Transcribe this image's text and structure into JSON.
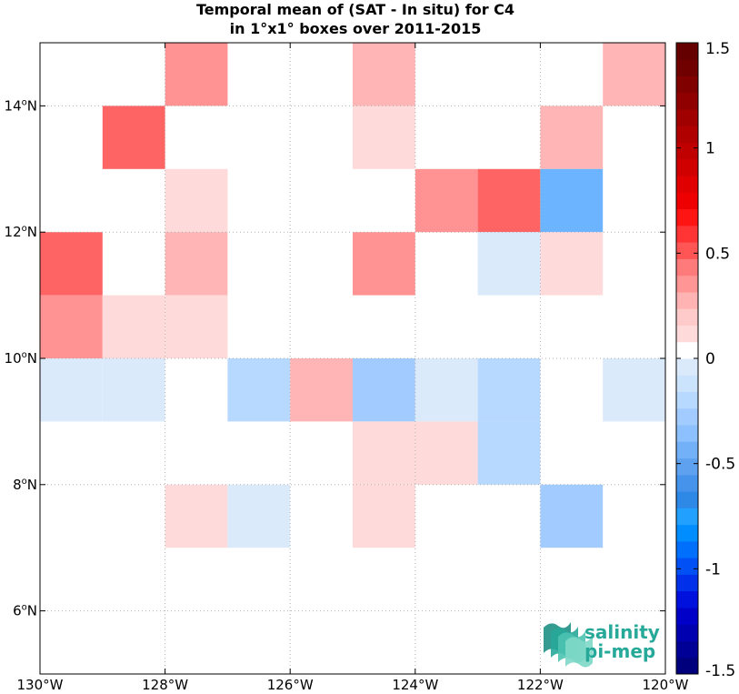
{
  "chart_data": {
    "type": "heatmap",
    "title": "Temporal mean of (SAT - In situ) for C4",
    "subtitle": "in 1°x1° boxes over 2011-2015",
    "xlim": [
      -130,
      -120
    ],
    "ylim": [
      5,
      15
    ],
    "x_ticks": [
      {
        "value": -130,
        "label": "130°W"
      },
      {
        "value": -128,
        "label": "128°W"
      },
      {
        "value": -126,
        "label": "126°W"
      },
      {
        "value": -124,
        "label": "124°W"
      },
      {
        "value": -122,
        "label": "122°W"
      },
      {
        "value": -120,
        "label": "120°W"
      }
    ],
    "y_ticks": [
      {
        "value": 6,
        "deg": "6",
        "hemi": "N"
      },
      {
        "value": 8,
        "deg": "8",
        "hemi": "N"
      },
      {
        "value": 10,
        "deg": "10",
        "hemi": "N"
      },
      {
        "value": 12,
        "deg": "12",
        "hemi": "N"
      },
      {
        "value": 14,
        "deg": "14",
        "hemi": "N"
      }
    ],
    "grid": true,
    "colorbar": {
      "min": -1.5,
      "max": 1.5,
      "levels": 30,
      "ticks": [
        {
          "value": 1.5,
          "label": "1.5"
        },
        {
          "value": 1,
          "label": "1"
        },
        {
          "value": 0.5,
          "label": "0.5"
        },
        {
          "value": 0,
          "label": "0"
        },
        {
          "value": -0.5,
          "label": "-0.5"
        },
        {
          "value": -1,
          "label": "-1"
        },
        {
          "value": -1.5,
          "label": "-1.5"
        }
      ],
      "colors": [
        "#00007c",
        "#000097",
        "#0000b0",
        "#0000c9",
        "#0011dd",
        "#0030ea",
        "#0050f5",
        "#006ffc",
        "#008dff",
        "#22a0ff",
        "#2e88e6",
        "#4593ea",
        "#5ea2ef",
        "#72b0f7",
        "#8cc0ff",
        "#a2ccff",
        "#b7d8ff",
        "#cbe3fd",
        "#dbeafb",
        "#ffffff",
        "#ffdada",
        "#ffcaca",
        "#ffb3b3",
        "#ff9595",
        "#ff7a7a",
        "#ff5555",
        "#ff3535",
        "#ff1414",
        "#ef0000",
        "#e00000",
        "#d00000",
        "#c00000",
        "#b00000",
        "#a00000",
        "#900000",
        "#800000",
        "#700000",
        "#650000"
      ],
      "colors_note": ""
    },
    "cells": [
      {
        "lon": -128,
        "lat": 14,
        "value": 0.35
      },
      {
        "lon": -125,
        "lat": 14,
        "value": 0.25
      },
      {
        "lon": -121,
        "lat": 14,
        "value": 0.25
      },
      {
        "lon": -129,
        "lat": 13,
        "value": 0.55
      },
      {
        "lon": -125,
        "lat": 13,
        "value": 0.15
      },
      {
        "lon": -122,
        "lat": 13,
        "value": 0.25
      },
      {
        "lon": -128,
        "lat": 12,
        "value": 0.15
      },
      {
        "lon": -124,
        "lat": 12,
        "value": 0.35
      },
      {
        "lon": -123,
        "lat": 12,
        "value": 0.55
      },
      {
        "lon": -122,
        "lat": 12,
        "value": -0.35
      },
      {
        "lon": -130,
        "lat": 11,
        "value": 0.55
      },
      {
        "lon": -128,
        "lat": 11,
        "value": 0.25
      },
      {
        "lon": -125,
        "lat": 11,
        "value": 0.35
      },
      {
        "lon": -123,
        "lat": 11,
        "value": -0.05
      },
      {
        "lon": -122,
        "lat": 11,
        "value": 0.15
      },
      {
        "lon": -130,
        "lat": 10,
        "value": 0.35
      },
      {
        "lon": -129,
        "lat": 10,
        "value": 0.15
      },
      {
        "lon": -128,
        "lat": 10,
        "value": 0.15
      },
      {
        "lon": -130,
        "lat": 9,
        "value": -0.05
      },
      {
        "lon": -129,
        "lat": 9,
        "value": -0.05
      },
      {
        "lon": -127,
        "lat": 9,
        "value": -0.15
      },
      {
        "lon": -126,
        "lat": 9,
        "value": 0.25
      },
      {
        "lon": -125,
        "lat": 9,
        "value": -0.25
      },
      {
        "lon": -124,
        "lat": 9,
        "value": -0.05
      },
      {
        "lon": -123,
        "lat": 9,
        "value": -0.15
      },
      {
        "lon": -121,
        "lat": 9,
        "value": -0.05
      },
      {
        "lon": -125,
        "lat": 8,
        "value": 0.15
      },
      {
        "lon": -124,
        "lat": 8,
        "value": 0.15
      },
      {
        "lon": -123,
        "lat": 8,
        "value": -0.15
      },
      {
        "lon": -128,
        "lat": 7,
        "value": 0.15
      },
      {
        "lon": -127,
        "lat": 7,
        "value": -0.05
      },
      {
        "lon": -125,
        "lat": 7,
        "value": 0.15
      },
      {
        "lon": -122,
        "lat": 7,
        "value": -0.25
      }
    ]
  },
  "logo": {
    "line1": "salinity",
    "line2": "pi-mep",
    "colors": [
      "#1f8f84",
      "#27a99a",
      "#4cc3b1",
      "#7fd8c8"
    ]
  }
}
